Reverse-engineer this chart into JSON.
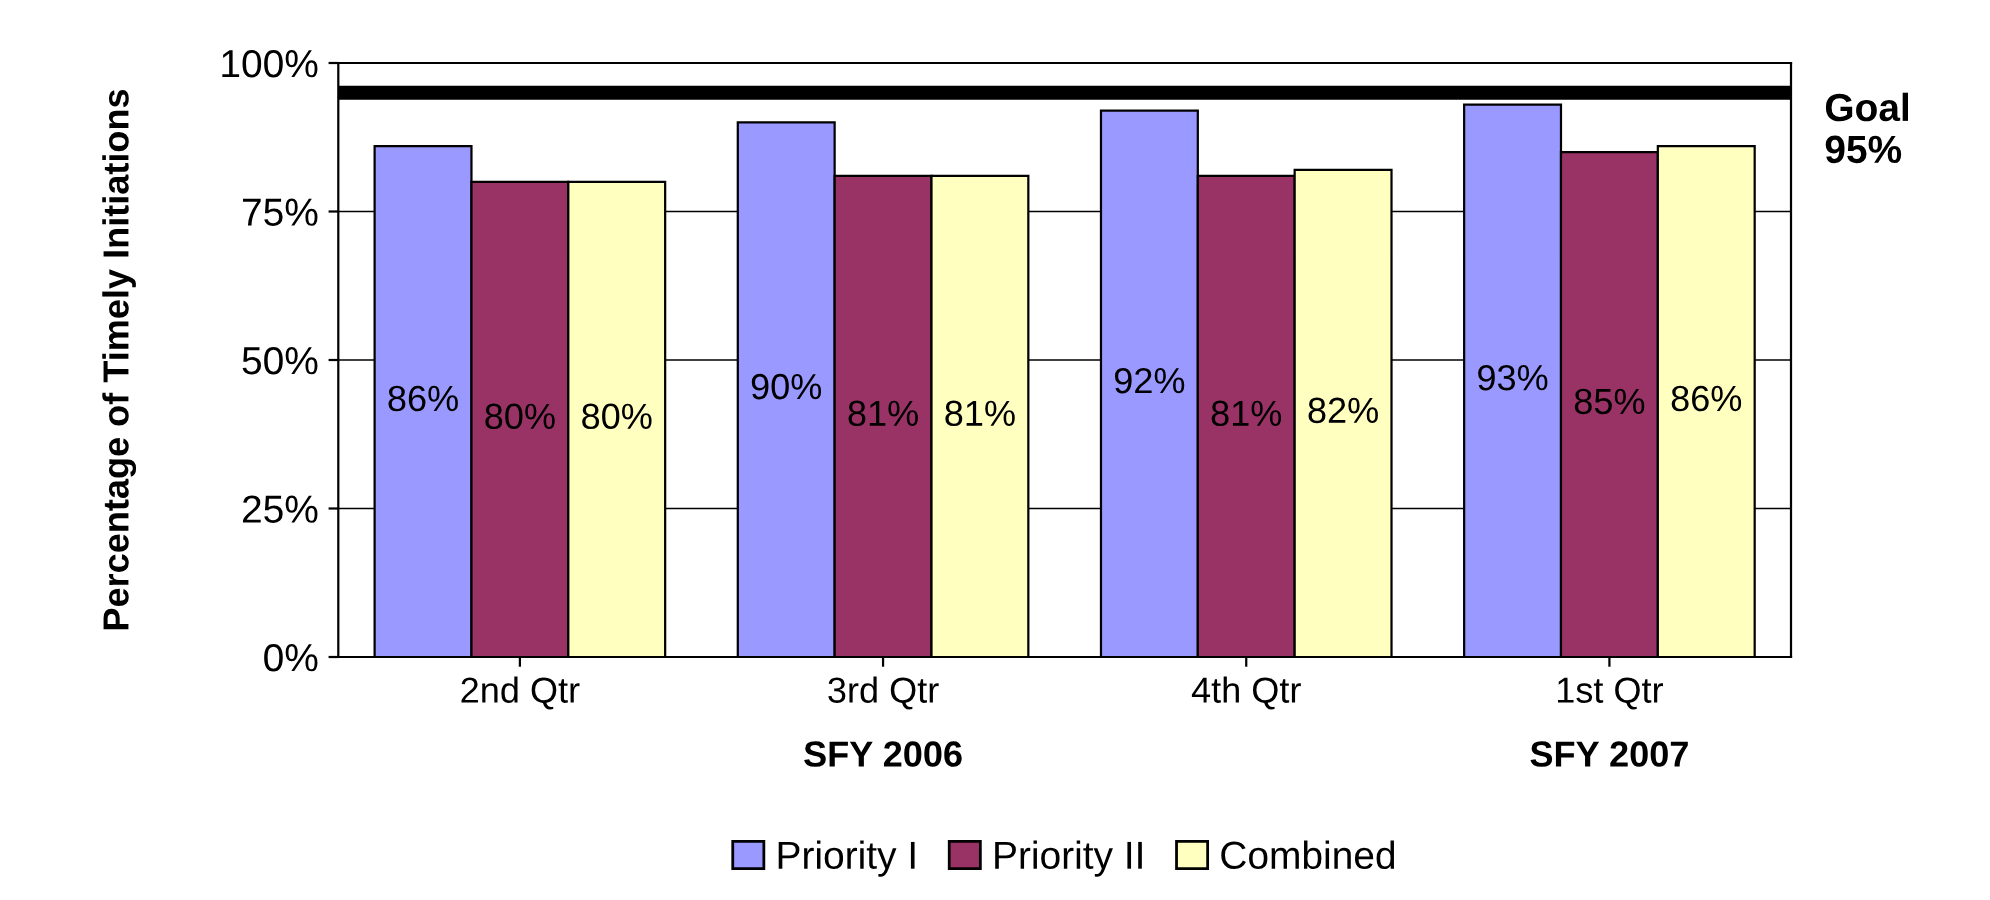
{
  "chart_data": {
    "type": "bar",
    "ylabel": "Percentage of Timely Initiations",
    "categories": [
      "2nd Qtr",
      "3rd Qtr",
      "4th Qtr",
      "1st Qtr"
    ],
    "series": [
      {
        "name": "Priority I",
        "color": "#9999ff",
        "values": [
          86,
          90,
          92,
          93
        ],
        "value_labels": [
          "86%",
          "90%",
          "92%",
          "93%"
        ]
      },
      {
        "name": "Priority II",
        "color": "#993366",
        "values": [
          80,
          81,
          81,
          85
        ],
        "value_labels": [
          "80%",
          "81%",
          "81%",
          "85%"
        ]
      },
      {
        "name": "Combined",
        "color": "#ffffc0",
        "values": [
          80,
          81,
          82,
          86
        ],
        "value_labels": [
          "80%",
          "81%",
          "82%",
          "86%"
        ]
      }
    ],
    "ylim": [
      0,
      100
    ],
    "yticks": [
      {
        "value": 0,
        "label": "0%"
      },
      {
        "value": 25,
        "label": "25%"
      },
      {
        "value": 50,
        "label": "50%"
      },
      {
        "value": 75,
        "label": "75%"
      },
      {
        "value": 100,
        "label": "100%"
      }
    ],
    "grid": "y",
    "legend": "bottom",
    "ref_lines": [
      {
        "axis": "y",
        "value": 95,
        "label": "Goal\n95%",
        "color": "#000000"
      }
    ],
    "annotations": [
      "SFY 2006",
      "SFY 2007"
    ]
  }
}
